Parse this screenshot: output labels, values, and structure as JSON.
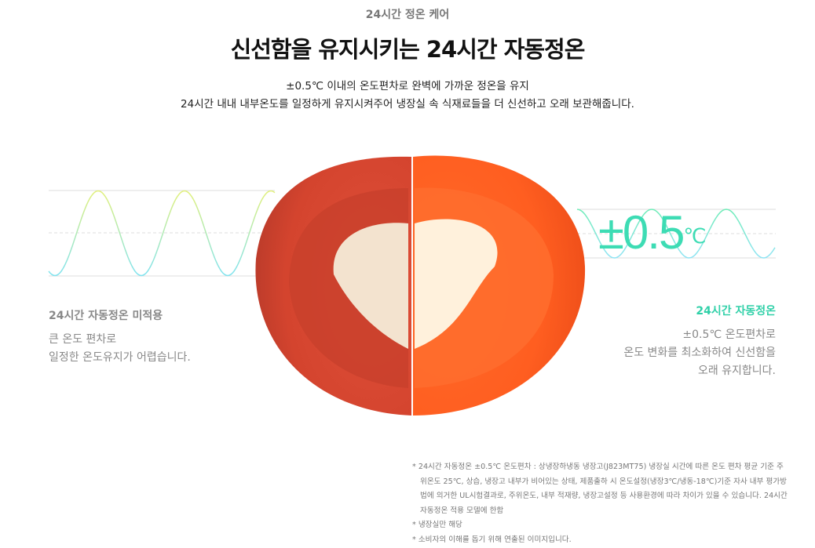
{
  "header": {
    "eyebrow": "24시간 정온 케어",
    "title": "신선함을 유지시키는 24시간 자동정온",
    "desc_line1": "±0.5℃ 이내의 온도편차로 완벽에 가까운 정온을 유지",
    "desc_line2": "24시간 내내 내부온도를 일정하게 유지시켜주어 냉장실 속 식재료들을 더 신선하고 오래 보관해줍니다."
  },
  "left": {
    "heading": "24시간 자동정온 미적용",
    "line1": "큰 온도 편차로",
    "line2": "일정한 온도유지가 어렵습니다."
  },
  "right": {
    "temp_value": "±0.5",
    "temp_unit": "℃",
    "heading": "24시간 자동정온",
    "line1": "±0.5℃ 온도편차로",
    "line2": "온도 변화를 최소화하여 신선함을",
    "line3": "오래 유지합니다."
  },
  "notes": [
    "* 24시간 자동정온 ±0.5℃ 온도편차 : 상냉장하냉동 냉장고(J823MT75) 냉장실 시간에 따른 온도 편차 평균 기준 주위온도 25℃, 상습, 냉장고 내부가 비어있는 상태, 제품출하 시 온도설정(냉장3℃/냉동-18℃)기준 자사 내부 평가방법에 의거한 UL시험결과로, 주위온도, 내부 적재량, 냉장고설정 등 사용환경에 따라 차이가 있을 수 있습니다. 24시간 자동정온 적용 모델에 한함",
    "* 냉장실만 해당",
    "* 소비자의 이해를 돕기 위해 연출된 이미지입니다."
  ],
  "colors": {
    "accent": "#2fd0a8",
    "wave_top": "#d8f07a",
    "wave_bottom": "#7fe3f0"
  }
}
